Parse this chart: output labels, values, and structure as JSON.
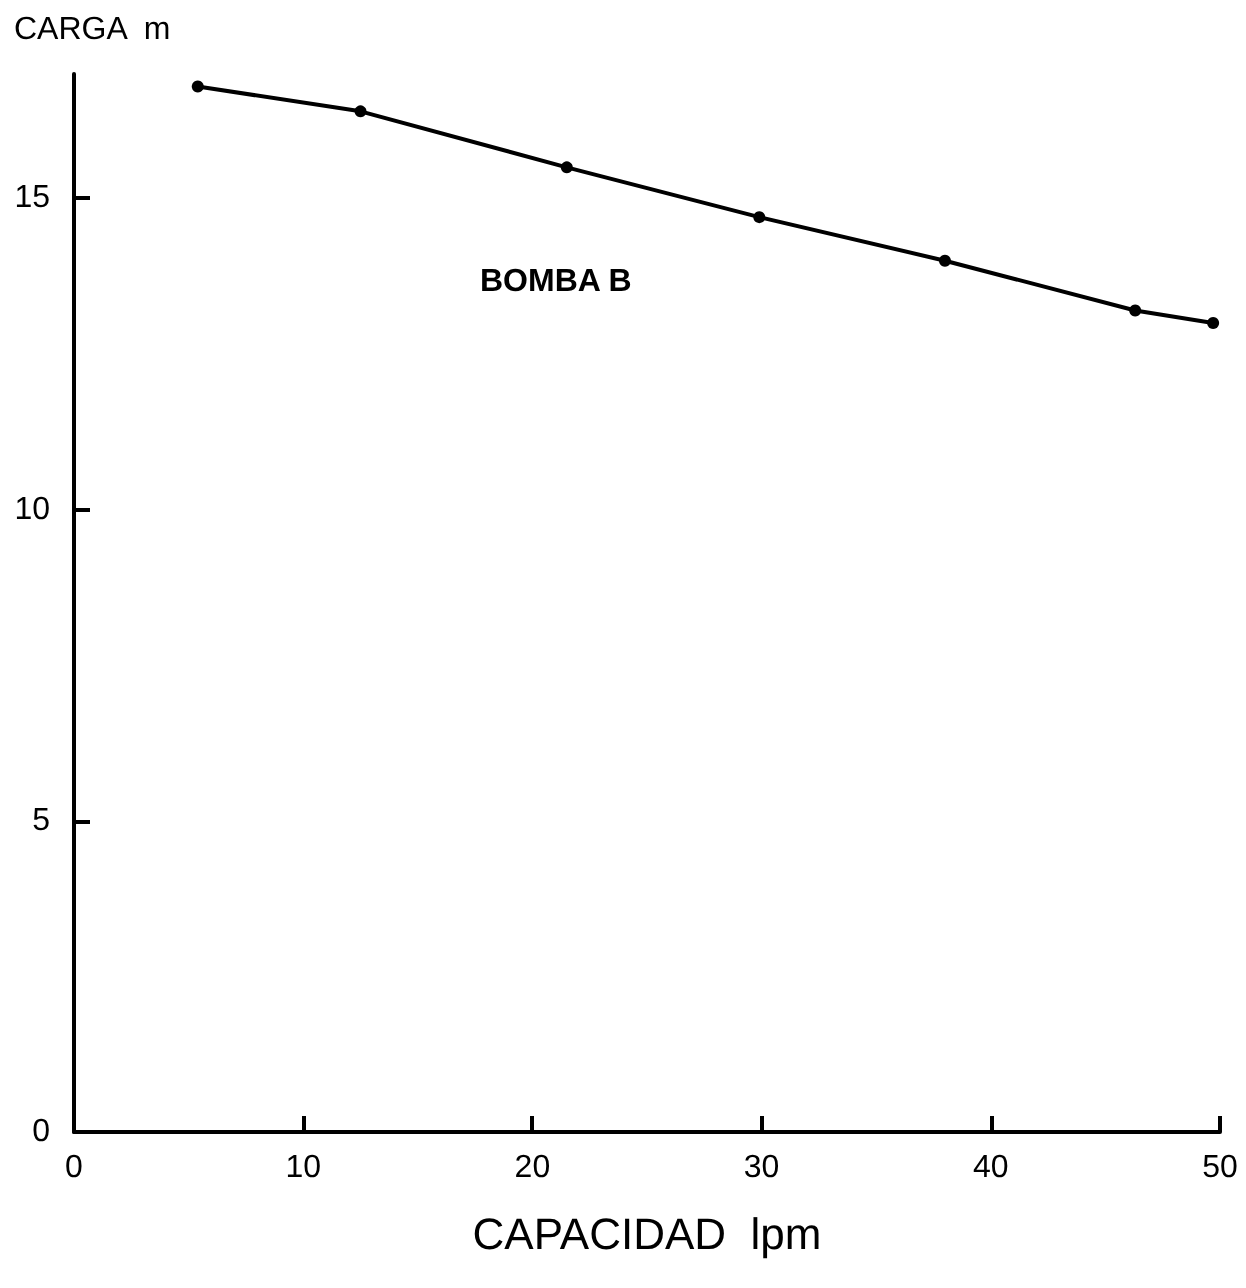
{
  "chart_data": {
    "type": "line",
    "xlabel": "CAPACIDAD  lpm",
    "ylabel": "CARGA  m",
    "annotations": [
      "BOMBA B"
    ],
    "x": [
      5.4,
      12.5,
      21.5,
      29.9,
      38.0,
      46.3,
      49.7
    ],
    "series": [
      {
        "color": "#000000",
        "values": [
          16.8,
          16.4,
          15.5,
          14.7,
          14.0,
          13.2,
          13.0
        ]
      }
    ],
    "xlim": [
      0,
      50
    ],
    "xticks": [
      0,
      10,
      20,
      30,
      40,
      50
    ],
    "ylim": [
      0,
      17
    ],
    "yticks": [
      0,
      5,
      10,
      15
    ],
    "grid": false,
    "marker": "circle",
    "line_style": "solid"
  }
}
